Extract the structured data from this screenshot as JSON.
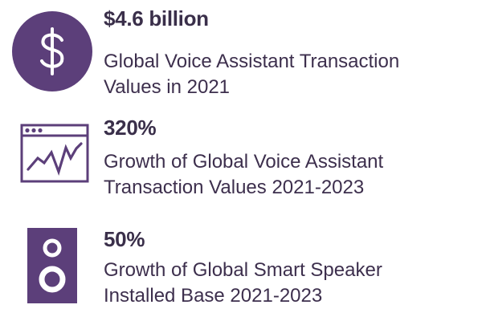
{
  "colors": {
    "accent": "#5c3f7a",
    "headline": "#3a2f4a",
    "text": "#3d2f4d",
    "background": "#ffffff"
  },
  "stats": [
    {
      "icon": "dollar-circle-icon",
      "value": "$4.6 billion",
      "description_lines": [
        "Global Voice Assistant Transaction",
        "Values in 2021"
      ]
    },
    {
      "icon": "line-chart-window-icon",
      "value": "320%",
      "description_lines": [
        "Growth of Global Voice Assistant",
        "Transaction Values 2021-2023"
      ]
    },
    {
      "icon": "smart-speaker-icon",
      "value": "50%",
      "description_lines": [
        "Growth of Global Smart Speaker",
        "Installed Base 2021-2023"
      ]
    }
  ]
}
